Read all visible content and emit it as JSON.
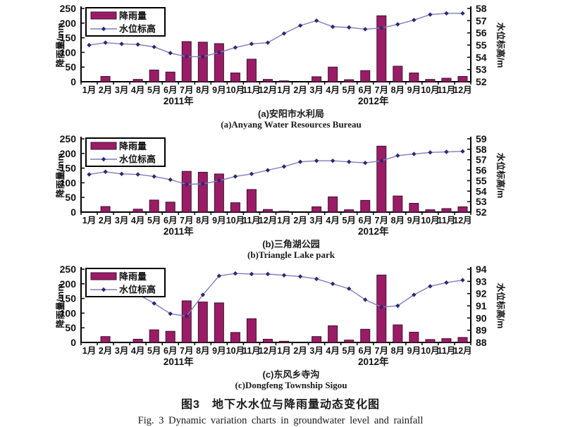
{
  "figure": {
    "caption_zh": "图3　地下水水位与降雨量动态变化图",
    "caption_en": "Fig. 3 Dynamic variation charts in groundwater level and rainfall"
  },
  "colors": {
    "bar_fill": "#9b1c66",
    "bar_stroke": "#3c102f",
    "line": "#7d7dbe",
    "marker": "#2a2a6e",
    "axis": "#000000",
    "text": "#111111",
    "legend_border": "#000000",
    "background": "#ffffff"
  },
  "legend": {
    "rain_label": "降雨量",
    "level_label": "水位标高"
  },
  "x_axis": {
    "months": [
      "1月",
      "2月",
      "3月",
      "4月",
      "5月",
      "6月",
      "7月",
      "8月",
      "9月",
      "10月",
      "11月",
      "12月"
    ],
    "years": [
      "2011年",
      "2012年"
    ]
  },
  "chart_data": [
    {
      "id": "a",
      "type": "bar",
      "note": "bar series = rainfall on left axis (mm); line series = groundwater level on right axis (m); x = Jan2011..Dec2012",
      "caption_zh": "(a)安阳市水利局",
      "caption_en": "(a)Anyang Water Resources Bureau",
      "left_axis": {
        "label": "降雨量/mm",
        "min": 0,
        "max": 250,
        "step": 50
      },
      "right_axis": {
        "label": "水位标高/m",
        "min": 52,
        "max": 58,
        "step": 1
      },
      "rainfall_mm": [
        0,
        18,
        0,
        8,
        40,
        33,
        137,
        135,
        130,
        30,
        77,
        8,
        3,
        0,
        17,
        50,
        7,
        38,
        225,
        53,
        30,
        8,
        12,
        18
      ],
      "water_level_m": [
        55.0,
        55.2,
        55.1,
        55.05,
        54.85,
        54.35,
        54.05,
        54.05,
        54.4,
        54.8,
        55.1,
        55.2,
        55.95,
        56.6,
        57.0,
        56.5,
        56.45,
        56.3,
        56.4,
        56.7,
        57.05,
        57.5,
        57.6,
        57.6
      ]
    },
    {
      "id": "b",
      "type": "bar",
      "note": "bar series = rainfall on left axis (mm); line series = groundwater level on right axis (m); x = Jan2011..Dec2012",
      "caption_zh": "(b)三角湖公园",
      "caption_en": "(b)Triangle Lake park",
      "left_axis": {
        "label": "降雨量/mm",
        "min": 0,
        "max": 250,
        "step": 50
      },
      "right_axis": {
        "label": "水位标高/m",
        "min": 52,
        "max": 59,
        "step": 1
      },
      "rainfall_mm": [
        0,
        19,
        0,
        10,
        41,
        34,
        139,
        136,
        130,
        32,
        77,
        9,
        3,
        0,
        18,
        52,
        8,
        40,
        225,
        55,
        30,
        8,
        12,
        18
      ],
      "water_level_m": [
        55.6,
        55.85,
        55.65,
        55.6,
        55.4,
        55.1,
        54.65,
        54.7,
        55.0,
        55.4,
        55.65,
        56.0,
        56.35,
        56.8,
        56.9,
        56.9,
        56.8,
        56.7,
        56.9,
        57.4,
        57.55,
        57.7,
        57.75,
        57.8
      ]
    },
    {
      "id": "c",
      "type": "bar",
      "note": "bar series = rainfall on left axis (mm); line series = groundwater level on right axis (m); x = Jan2011..Dec2012",
      "caption_zh": "(c)东风乡寺沟",
      "caption_en": "(c)Dongfeng Township Sigou",
      "left_axis": {
        "label": "降雨量/mm",
        "min": 0,
        "max": 250,
        "step": 50
      },
      "right_axis": {
        "label": "水位标高/m",
        "min": 88,
        "max": 94,
        "step": 1
      },
      "rainfall_mm": [
        0,
        20,
        0,
        11,
        43,
        38,
        142,
        138,
        135,
        34,
        81,
        11,
        4,
        0,
        20,
        57,
        8,
        45,
        230,
        60,
        35,
        10,
        13,
        17
      ],
      "water_level_m": [
        92.65,
        92.55,
        92.45,
        91.95,
        91.2,
        90.35,
        90.15,
        91.9,
        93.45,
        93.65,
        93.6,
        93.6,
        93.5,
        93.4,
        93.2,
        92.8,
        92.4,
        91.5,
        90.9,
        91.0,
        91.9,
        92.6,
        92.9,
        93.1
      ]
    }
  ]
}
